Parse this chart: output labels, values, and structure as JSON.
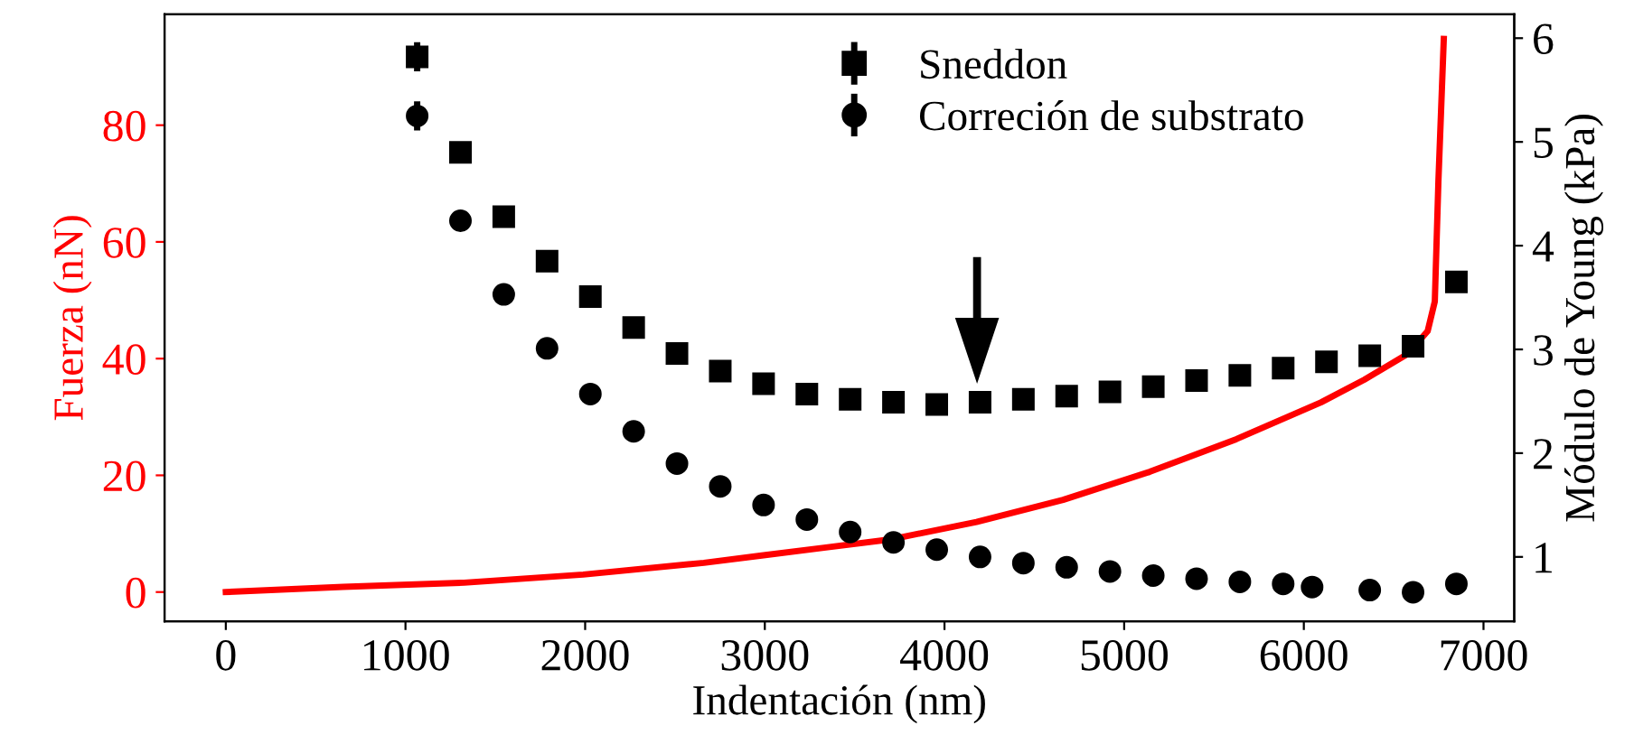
{
  "chart_data": {
    "type": "scatter",
    "xlabel": "Indentación (nm)",
    "ylabel": "Fuerza (nN)",
    "y2label": "Módulo de Young (kPa)",
    "xlim": [
      -341,
      7171
    ],
    "xticks": [
      0,
      1000,
      2000,
      3000,
      4000,
      5000,
      6000,
      7000
    ],
    "ylim": [
      -5,
      99
    ],
    "yticks": [
      0,
      20,
      40,
      60,
      80
    ],
    "y2lim": [
      0.38,
      6.23
    ],
    "y2ticks": [
      1,
      2,
      3,
      4,
      5,
      6
    ],
    "legend": "top right",
    "grid": false,
    "series": [
      {
        "type": "line",
        "color": "#ff0000",
        "line_style": "solid",
        "marker": "none",
        "x": [
          0,
          653,
          1326,
          1989,
          2661,
          2993,
          3330,
          3696,
          4178,
          4660,
          5142,
          5624,
          6096,
          6337,
          6578,
          6689,
          6729,
          6749,
          6779
        ],
        "values": [
          0,
          0.9,
          1.6,
          3.0,
          5.0,
          6.3,
          7.6,
          9.0,
          12.0,
          15.8,
          20.6,
          26.2,
          32.5,
          36.4,
          40.8,
          44.7,
          49.8,
          70.4,
          94.8
        ]
      },
      {
        "name": "Sneddon",
        "axis": "y2",
        "color": "#000000",
        "marker": "square",
        "x": [
          1065,
          1306,
          1547,
          1788,
          2029,
          2270,
          2511,
          2752,
          2993,
          3234,
          3475,
          3716,
          3957,
          4198,
          4439,
          4680,
          4921,
          5162,
          5403,
          5644,
          5885,
          6126,
          6367,
          6608,
          6849
        ],
        "values": [
          5.82,
          4.9,
          4.28,
          3.85,
          3.51,
          3.21,
          2.96,
          2.79,
          2.67,
          2.57,
          2.52,
          2.49,
          2.47,
          2.49,
          2.52,
          2.55,
          2.59,
          2.64,
          2.7,
          2.75,
          2.82,
          2.88,
          2.94,
          3.03,
          3.65
        ],
        "errors": [
          0.14,
          0.05,
          null,
          null,
          null,
          null,
          null,
          null,
          null,
          null,
          null,
          null,
          null,
          null,
          null,
          null,
          null,
          null,
          null,
          null,
          null,
          null,
          null,
          null,
          null
        ]
      },
      {
        "name": "Correción de substrato",
        "axis": "y2",
        "color": "#000000",
        "marker": "circle",
        "x": [
          1065,
          1306,
          1547,
          1788,
          2029,
          2270,
          2511,
          2752,
          2993,
          3234,
          3475,
          3716,
          3957,
          4198,
          4439,
          4680,
          4921,
          5162,
          5403,
          5644,
          5885,
          6046,
          6367,
          6608,
          6849
        ],
        "values": [
          5.25,
          4.24,
          3.53,
          3.01,
          2.57,
          2.21,
          1.9,
          1.68,
          1.5,
          1.36,
          1.24,
          1.14,
          1.07,
          1.0,
          0.94,
          0.9,
          0.86,
          0.82,
          0.79,
          0.76,
          0.74,
          0.71,
          0.68,
          0.66,
          0.74
        ],
        "errors": [
          0.14,
          0.05,
          null,
          null,
          null,
          null,
          null,
          null,
          null,
          null,
          null,
          null,
          null,
          null,
          null,
          null,
          null,
          null,
          null,
          null,
          null,
          null,
          null,
          null,
          null
        ]
      }
    ]
  }
}
